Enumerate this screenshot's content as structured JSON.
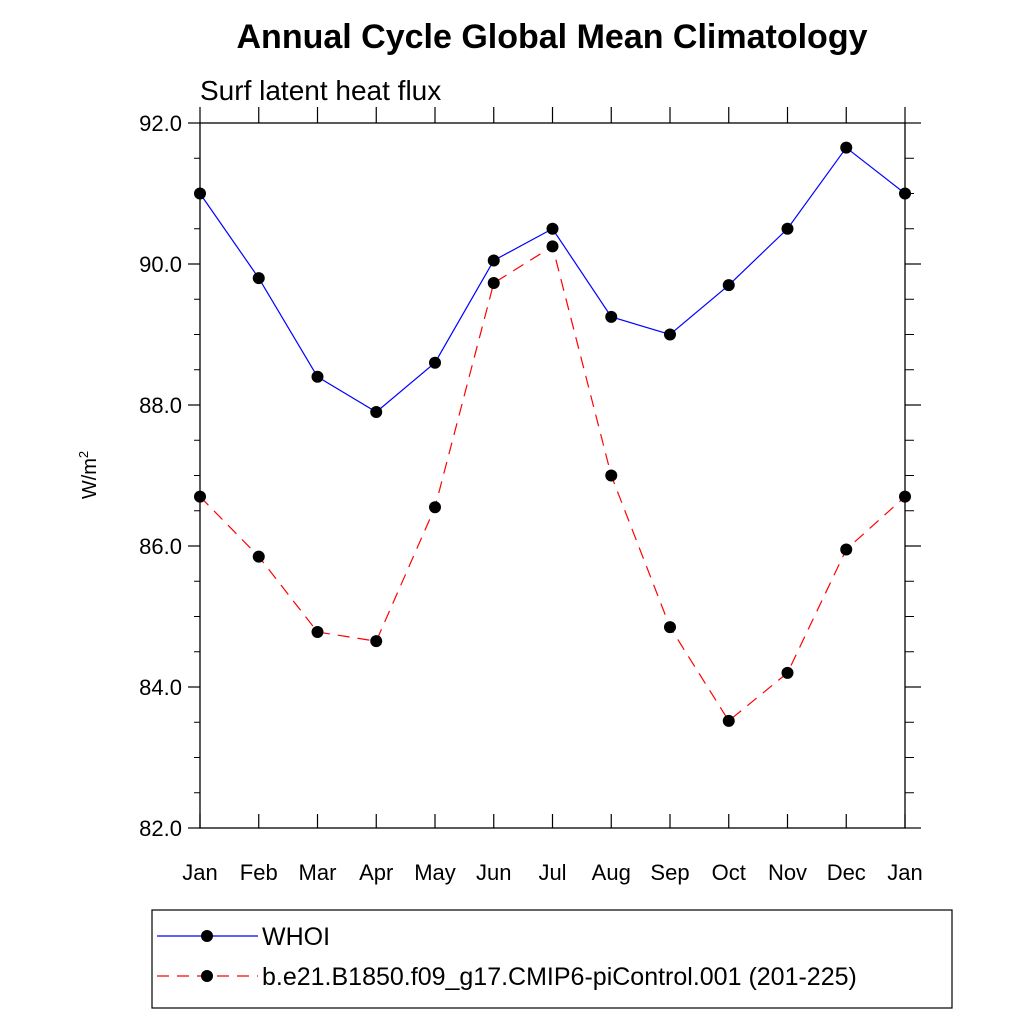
{
  "chart_data": {
    "type": "line",
    "title": "Annual Cycle Global Mean Climatology",
    "subtitle": "Surf latent heat flux",
    "ylabel_base": "W/m",
    "ylabel_sup": "2",
    "ylim": [
      82.0,
      92.0
    ],
    "yticks": [
      "82.0",
      "84.0",
      "86.0",
      "88.0",
      "90.0",
      "92.0"
    ],
    "ytick_values": [
      82,
      84,
      86,
      88,
      90,
      92
    ],
    "categories": [
      "Jan",
      "Feb",
      "Mar",
      "Apr",
      "May",
      "Jun",
      "Jul",
      "Aug",
      "Sep",
      "Oct",
      "Nov",
      "Dec",
      "Jan"
    ],
    "grid": false,
    "legend_position": "bottom",
    "series": [
      {
        "name": "WHOI",
        "color": "#0000ff",
        "style": "solid",
        "values": [
          91.0,
          89.8,
          88.4,
          87.9,
          88.6,
          90.05,
          90.5,
          89.25,
          89.0,
          89.7,
          90.5,
          91.65,
          91.0
        ]
      },
      {
        "name": "b.e21.B1850.f09_g17.CMIP6-piControl.001 (201-225)",
        "color": "#ff0000",
        "style": "dashed",
        "values": [
          86.7,
          85.85,
          84.78,
          84.65,
          86.55,
          89.73,
          90.25,
          87.0,
          84.85,
          83.52,
          84.2,
          85.95,
          86.7
        ]
      }
    ]
  }
}
